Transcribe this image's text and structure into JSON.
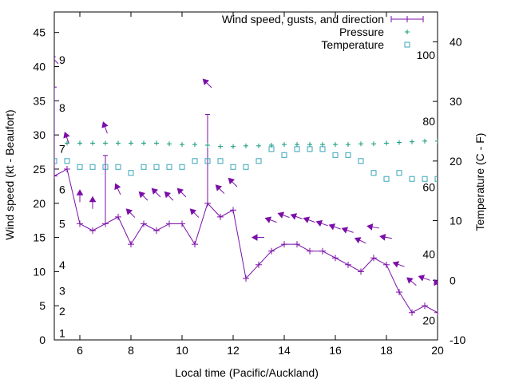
{
  "chart_data": {
    "type": "line",
    "xlabel": "Local time (Pacific/Auckland)",
    "ylabel": "Wind speed (kt - Beaufort)",
    "y2label": "Temperature (C - F)",
    "xlim": [
      5,
      20
    ],
    "ylim": [
      0,
      48
    ],
    "y2lim": [
      -10,
      45
    ],
    "x_ticks": [
      6,
      8,
      10,
      12,
      14,
      16,
      18,
      20
    ],
    "y_ticks": [
      0,
      5,
      10,
      15,
      20,
      25,
      30,
      35,
      40,
      45
    ],
    "y2_ticks": [
      -10,
      0,
      10,
      20,
      30,
      40
    ],
    "beaufort_labels": [
      {
        "label": "1",
        "y": 1
      },
      {
        "label": "2",
        "y": 4.2
      },
      {
        "label": "3",
        "y": 7.2
      },
      {
        "label": "4",
        "y": 11
      },
      {
        "label": "5",
        "y": 17
      },
      {
        "label": "6",
        "y": 22
      },
      {
        "label": "7",
        "y": 28
      },
      {
        "label": "8",
        "y": 34
      },
      {
        "label": "9",
        "y": 41
      }
    ],
    "fahrenheit_labels": [
      {
        "label": "20",
        "y2": -6.7
      },
      {
        "label": "40",
        "y2": 4.4
      },
      {
        "label": "60",
        "y2": 15.6
      },
      {
        "label": "80",
        "y2": 26.7
      },
      {
        "label": "100",
        "y2": 37.8
      }
    ],
    "legend_position": "top-right",
    "series": [
      {
        "name": "Wind speed, gusts, and direction",
        "x": [
          5,
          5.5,
          6,
          6.5,
          7,
          7.5,
          8,
          8.5,
          9,
          9.5,
          10,
          10.5,
          11,
          11.5,
          12,
          12.5,
          13,
          13.5,
          14,
          14.5,
          15,
          15.5,
          16,
          16.5,
          17,
          17.5,
          18,
          18.5,
          19,
          19.5,
          20
        ],
        "values": [
          24,
          25,
          17,
          16,
          17,
          18,
          14,
          17,
          16,
          17,
          17,
          14,
          20,
          18,
          19,
          9,
          11,
          13,
          14,
          14,
          13,
          13,
          12,
          11,
          10,
          12,
          11,
          7,
          4,
          5,
          4
        ],
        "gusts": [
          {
            "x": 5,
            "from": 24,
            "to": 37
          },
          {
            "x": 7,
            "from": 17,
            "to": 27
          },
          {
            "x": 11,
            "from": 20,
            "to": 33
          }
        ],
        "direction_arrows": [
          {
            "x": 5,
            "y": 41,
            "angle": 135
          },
          {
            "x": 5.5,
            "y": 29.5,
            "angle": 160
          },
          {
            "x": 6,
            "y": 21,
            "angle": 180
          },
          {
            "x": 6.5,
            "y": 20,
            "angle": 180
          },
          {
            "x": 7,
            "y": 31,
            "angle": 160
          },
          {
            "x": 7.5,
            "y": 22,
            "angle": 155
          },
          {
            "x": 8,
            "y": 18.5,
            "angle": 135
          },
          {
            "x": 8.5,
            "y": 21,
            "angle": 135
          },
          {
            "x": 9,
            "y": 21.5,
            "angle": 135
          },
          {
            "x": 9.5,
            "y": 21,
            "angle": 135
          },
          {
            "x": 10,
            "y": 21.5,
            "angle": 135
          },
          {
            "x": 10.5,
            "y": 18.5,
            "angle": 135
          },
          {
            "x": 11,
            "y": 37.5,
            "angle": 135
          },
          {
            "x": 11.5,
            "y": 22,
            "angle": 135
          },
          {
            "x": 12,
            "y": 23,
            "angle": 135
          },
          {
            "x": 13,
            "y": 15,
            "angle": 90
          },
          {
            "x": 13.5,
            "y": 17.5,
            "angle": 110
          },
          {
            "x": 14,
            "y": 18.2,
            "angle": 110
          },
          {
            "x": 14.5,
            "y": 18,
            "angle": 110
          },
          {
            "x": 15,
            "y": 17.5,
            "angle": 110
          },
          {
            "x": 15.5,
            "y": 17,
            "angle": 110
          },
          {
            "x": 16,
            "y": 16.5,
            "angle": 110
          },
          {
            "x": 16.5,
            "y": 16,
            "angle": 110
          },
          {
            "x": 17,
            "y": 14.5,
            "angle": 115
          },
          {
            "x": 17.5,
            "y": 16.5,
            "angle": 100
          },
          {
            "x": 18,
            "y": 15,
            "angle": 100
          },
          {
            "x": 18.5,
            "y": 11,
            "angle": 110
          },
          {
            "x": 19,
            "y": 8.5,
            "angle": 130
          },
          {
            "x": 19.5,
            "y": 9,
            "angle": 110
          },
          {
            "x": 20,
            "y": 8,
            "angle": 150
          }
        ]
      },
      {
        "name": "Pressure",
        "axis": "y",
        "x": [
          5.5,
          6,
          6.5,
          7,
          7.5,
          8,
          8.5,
          9,
          9.5,
          10,
          10.5,
          11,
          11.5,
          12,
          12.5,
          13,
          13.5,
          14,
          14.5,
          15,
          15.5,
          16,
          16.5,
          17,
          17.5,
          18,
          18.5,
          19,
          19.5,
          20
        ],
        "values": [
          28.8,
          28.8,
          28.8,
          28.8,
          28.8,
          28.8,
          28.8,
          28.8,
          28.7,
          28.6,
          28.6,
          28.5,
          28.3,
          28.3,
          28.4,
          28.4,
          28.5,
          28.6,
          28.6,
          28.6,
          28.6,
          28.6,
          28.6,
          28.7,
          28.7,
          28.8,
          28.9,
          29,
          29.1,
          29.1
        ]
      },
      {
        "name": "Temperature",
        "axis": "y2",
        "x": [
          5,
          5.5,
          6,
          6.5,
          7,
          7.5,
          8,
          8.5,
          9,
          9.5,
          10,
          10.5,
          11,
          11.5,
          12,
          12.5,
          13,
          13.5,
          14,
          14.5,
          15,
          15.5,
          16,
          16.5,
          17,
          17.5,
          18,
          18.5,
          19,
          19.5,
          20
        ],
        "values": [
          20,
          20,
          19,
          19,
          19,
          19,
          18,
          19,
          19,
          19,
          19,
          20,
          20,
          20,
          19,
          19,
          20,
          22,
          21,
          22,
          22,
          22,
          21,
          21,
          20,
          18,
          17,
          18,
          17,
          17,
          17
        ]
      }
    ]
  }
}
